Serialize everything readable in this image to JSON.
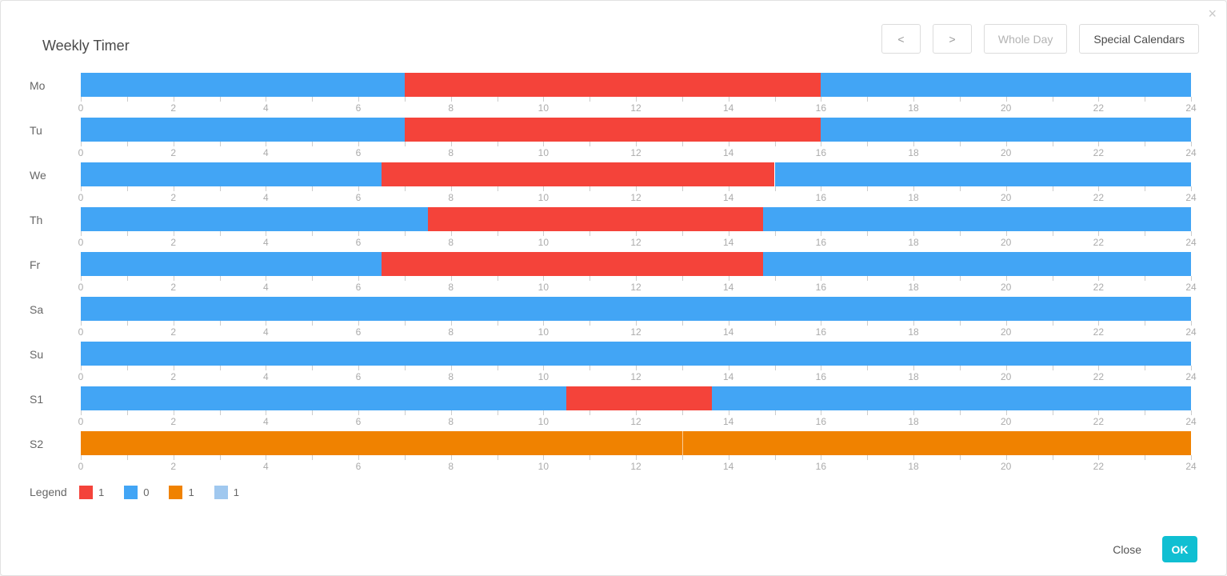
{
  "dialog": {
    "title": "Weekly Timer",
    "close_icon": "×"
  },
  "toolbar": {
    "prev_label": "<",
    "next_label": ">",
    "whole_day_label": "Whole Day",
    "special_calendars_label": "Special Calendars"
  },
  "colors": {
    "red": "#f4433a",
    "blue": "#42a5f5",
    "orange": "#f08200",
    "lightblue": "#a0c8ef",
    "ok_button": "#10bfd2"
  },
  "chart_data": {
    "type": "timeline",
    "title": "Weekly Timer",
    "axis": {
      "min": 0,
      "max": 24,
      "tick_step": 1,
      "label_step": 2,
      "tick_labels": [
        0,
        2,
        4,
        6,
        8,
        10,
        12,
        14,
        16,
        18,
        20,
        22,
        24
      ]
    },
    "rows": [
      {
        "label": "Mo",
        "segments": [
          {
            "start": 0,
            "end": 7,
            "color": "blue"
          },
          {
            "start": 7,
            "end": 16,
            "color": "red"
          },
          {
            "start": 16,
            "end": 24,
            "color": "blue"
          }
        ]
      },
      {
        "label": "Tu",
        "segments": [
          {
            "start": 0,
            "end": 7,
            "color": "blue"
          },
          {
            "start": 7,
            "end": 16,
            "color": "red"
          },
          {
            "start": 16,
            "end": 24,
            "color": "blue"
          }
        ]
      },
      {
        "label": "We",
        "segments": [
          {
            "start": 0,
            "end": 6.5,
            "color": "blue"
          },
          {
            "start": 6.5,
            "end": 15,
            "color": "red"
          },
          {
            "start": 15,
            "end": 24,
            "color": "blue"
          }
        ]
      },
      {
        "label": "Th",
        "segments": [
          {
            "start": 0,
            "end": 7.5,
            "color": "blue"
          },
          {
            "start": 7.5,
            "end": 14.75,
            "color": "red"
          },
          {
            "start": 14.75,
            "end": 24,
            "color": "blue"
          }
        ]
      },
      {
        "label": "Fr",
        "segments": [
          {
            "start": 0,
            "end": 6.5,
            "color": "blue"
          },
          {
            "start": 6.5,
            "end": 14.75,
            "color": "red"
          },
          {
            "start": 14.75,
            "end": 24,
            "color": "blue"
          }
        ]
      },
      {
        "label": "Sa",
        "segments": [
          {
            "start": 0,
            "end": 24,
            "color": "blue"
          }
        ]
      },
      {
        "label": "Su",
        "segments": [
          {
            "start": 0,
            "end": 24,
            "color": "blue"
          }
        ]
      },
      {
        "label": "S1",
        "segments": [
          {
            "start": 0,
            "end": 10.5,
            "color": "blue"
          },
          {
            "start": 10.5,
            "end": 13.65,
            "color": "red"
          },
          {
            "start": 13.65,
            "end": 24,
            "color": "blue"
          }
        ]
      },
      {
        "label": "S2",
        "segments": [
          {
            "start": 0,
            "end": 13,
            "color": "orange"
          },
          {
            "start": 13,
            "end": 24,
            "color": "orange"
          }
        ]
      }
    ]
  },
  "legend": {
    "label": "Legend",
    "items": [
      {
        "color": "red",
        "value": "1"
      },
      {
        "color": "blue",
        "value": "0"
      },
      {
        "color": "orange",
        "value": "1"
      },
      {
        "color": "lightblue",
        "value": "1"
      }
    ]
  },
  "footer": {
    "close_label": "Close",
    "ok_label": "OK"
  }
}
